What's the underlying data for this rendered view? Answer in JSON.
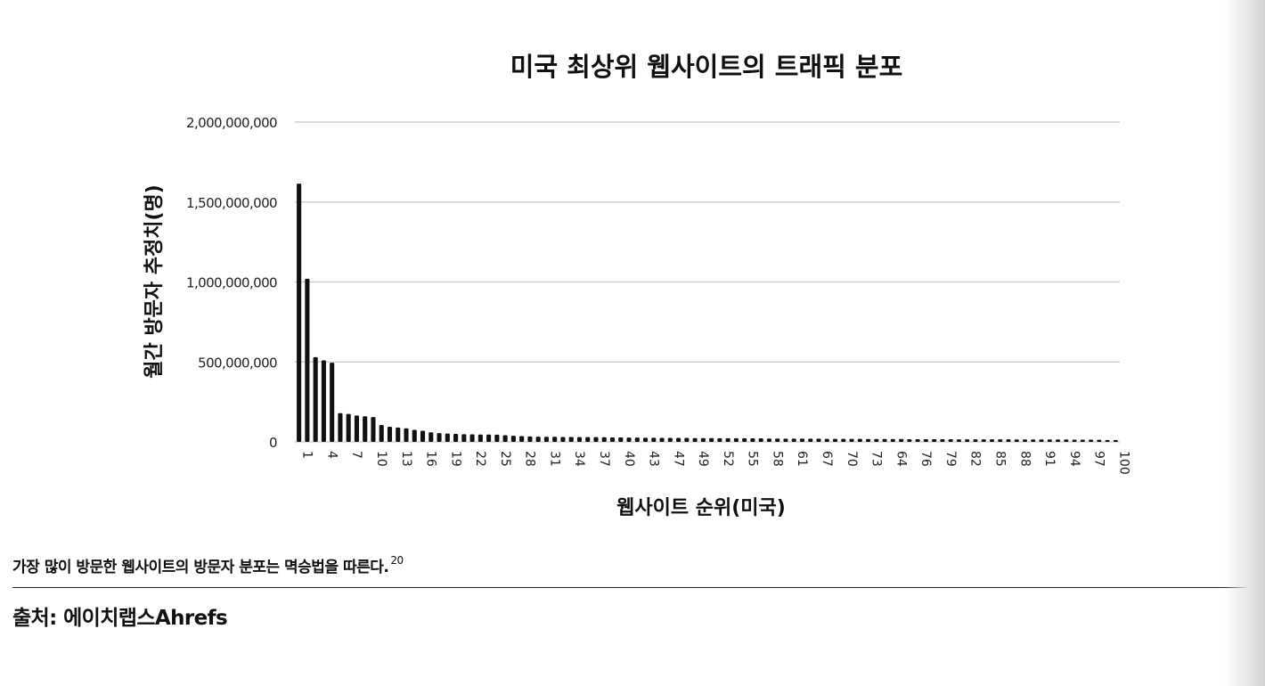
{
  "chart_data": {
    "type": "bar",
    "title": "미국 최상위 웹사이트의 트래픽 분포",
    "xlabel": "웹사이트 순위(미국)",
    "ylabel": "월간 방문자 추정치(명)",
    "ylim": [
      0,
      2000000000
    ],
    "yticks": [
      {
        "value": 0,
        "label": "0"
      },
      {
        "value": 500000000,
        "label": "500,000,000"
      },
      {
        "value": 1000000000,
        "label": "1,000,000,000"
      },
      {
        "value": 1500000000,
        "label": "1,500,000,000"
      },
      {
        "value": 2000000000,
        "label": "2,000,000,000"
      }
    ],
    "grid": true,
    "legend": "none",
    "bar_color": "#111111",
    "categories": [
      1,
      2,
      3,
      4,
      5,
      6,
      7,
      8,
      9,
      10,
      11,
      12,
      13,
      14,
      15,
      16,
      17,
      18,
      19,
      20,
      21,
      22,
      23,
      24,
      25,
      26,
      27,
      28,
      29,
      30,
      31,
      32,
      33,
      34,
      35,
      36,
      37,
      38,
      39,
      40,
      41,
      42,
      43,
      44,
      45,
      46,
      47,
      48,
      49,
      50,
      51,
      52,
      53,
      54,
      55,
      56,
      57,
      58,
      59,
      60,
      61,
      62,
      63,
      64,
      65,
      66,
      67,
      68,
      69,
      70,
      71,
      72,
      73,
      74,
      75,
      76,
      77,
      78,
      79,
      80,
      81,
      82,
      83,
      84,
      85,
      86,
      87,
      88,
      89,
      90,
      91,
      92,
      93,
      94,
      95,
      96,
      97,
      98,
      99,
      100
    ],
    "xtick_labels": [
      "1",
      "4",
      "7",
      "10",
      "13",
      "16",
      "19",
      "22",
      "25",
      "28",
      "31",
      "34",
      "37",
      "40",
      "43",
      "47",
      "49",
      "52",
      "55",
      "58",
      "61",
      "67",
      "70",
      "73",
      "64",
      "76",
      "79",
      "82",
      "85",
      "88",
      "91",
      "94",
      "97",
      "100"
    ],
    "values": [
      1615000000,
      1020000000,
      530000000,
      510000000,
      495000000,
      180000000,
      175000000,
      165000000,
      160000000,
      155000000,
      105000000,
      95000000,
      90000000,
      85000000,
      75000000,
      70000000,
      60000000,
      55000000,
      52000000,
      50000000,
      48000000,
      47000000,
      46000000,
      46000000,
      45000000,
      42000000,
      38000000,
      36000000,
      34000000,
      33000000,
      32000000,
      32000000,
      31000000,
      31000000,
      30000000,
      30000000,
      30000000,
      29000000,
      28000000,
      28000000,
      27000000,
      27000000,
      26000000,
      26000000,
      25000000,
      25000000,
      25000000,
      25000000,
      24000000,
      24000000,
      24000000,
      23000000,
      23000000,
      23000000,
      23000000,
      22000000,
      22000000,
      21000000,
      21000000,
      20000000,
      20000000,
      20000000,
      20000000,
      20000000,
      19000000,
      19000000,
      19000000,
      19000000,
      19000000,
      18000000,
      18000000,
      18000000,
      18000000,
      18000000,
      17000000,
      17000000,
      17000000,
      17000000,
      17000000,
      17000000,
      16000000,
      16000000,
      16000000,
      16000000,
      16000000,
      16000000,
      16000000,
      15000000,
      15000000,
      15000000,
      15000000,
      15000000,
      15000000,
      15000000,
      14000000,
      14000000,
      14000000,
      13000000,
      12000000,
      12000000
    ]
  },
  "caption": {
    "text": "가장 많이 방문한 웹사이트의 방문자 분포는 멱승법을 따른다.",
    "footnote": "20"
  },
  "source": {
    "text": "출처: 에이치랩스Ahrefs"
  }
}
